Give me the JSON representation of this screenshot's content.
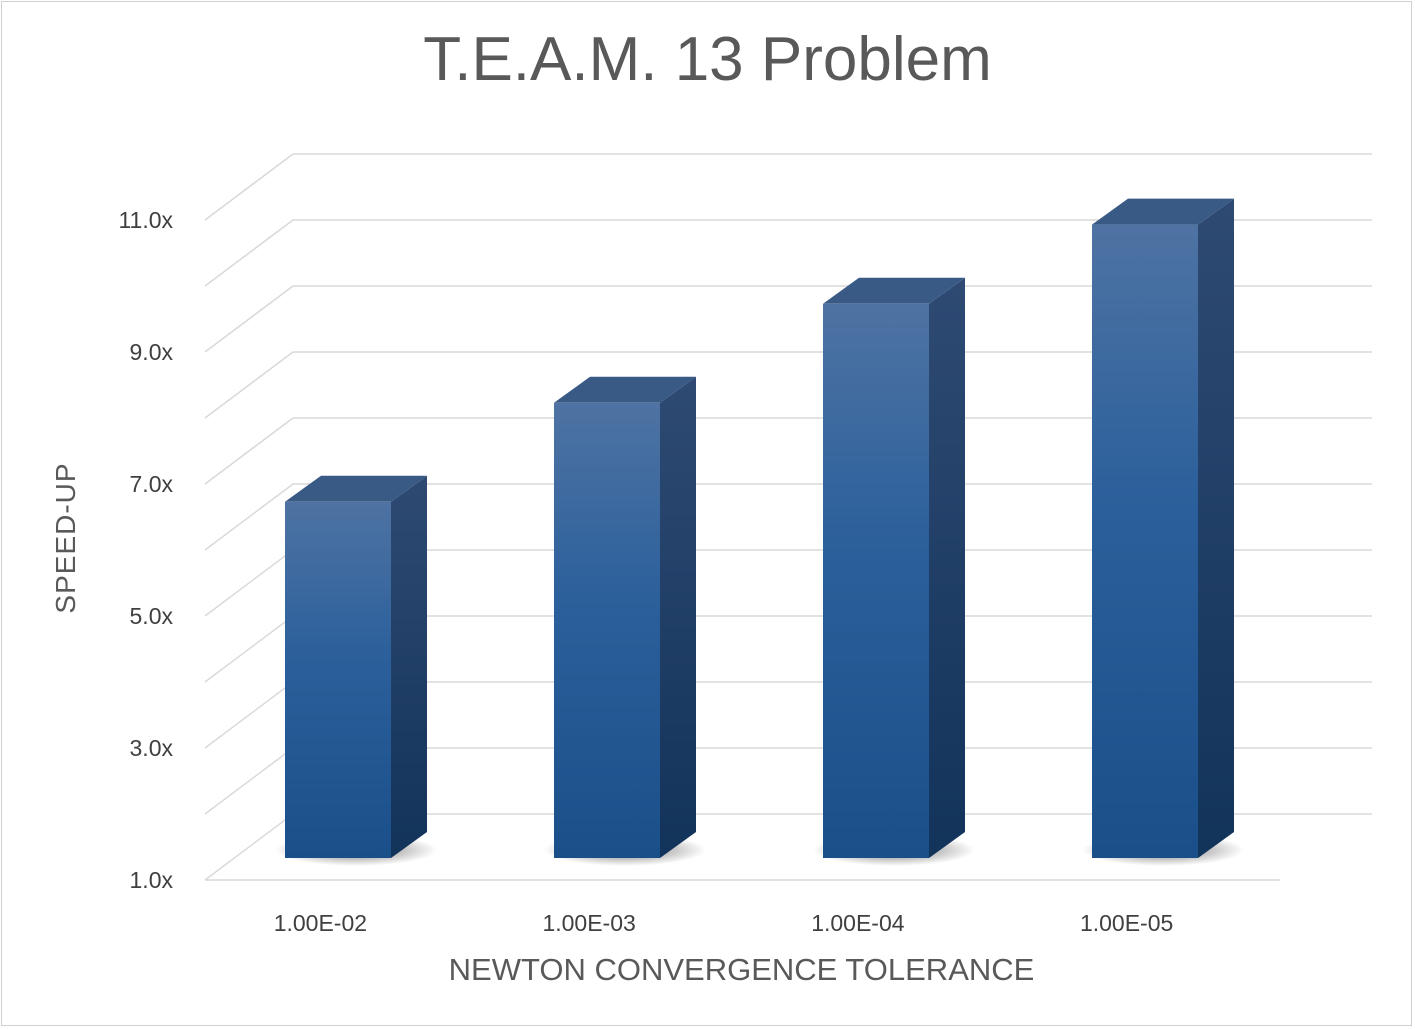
{
  "chart_data": {
    "type": "bar",
    "title": "T.E.A.M. 13 Problem",
    "xlabel": "NEWTON CONVERGENCE TOLERANCE",
    "ylabel": "SPEED-UP",
    "categories": [
      "1.00E-02",
      "1.00E-03",
      "1.00E-04",
      "1.00E-05"
    ],
    "values": [
      6.7,
      8.2,
      9.7,
      10.9
    ],
    "ylim": [
      1,
      12
    ],
    "yticks": [
      "1.0x",
      "3.0x",
      "5.0x",
      "7.0x",
      "9.0x",
      "11.0x"
    ],
    "ytick_values": [
      1,
      3,
      5,
      7,
      9,
      11
    ],
    "grid": true,
    "style": "3d-column",
    "colors": {
      "bar_front_top": "#4e73a3",
      "bar_front_bottom": "#1a4f8a",
      "bar_side": "#1c3a63",
      "bar_top": "#3a5a86",
      "grid": "#d9d9d9",
      "text": "#595959"
    }
  }
}
